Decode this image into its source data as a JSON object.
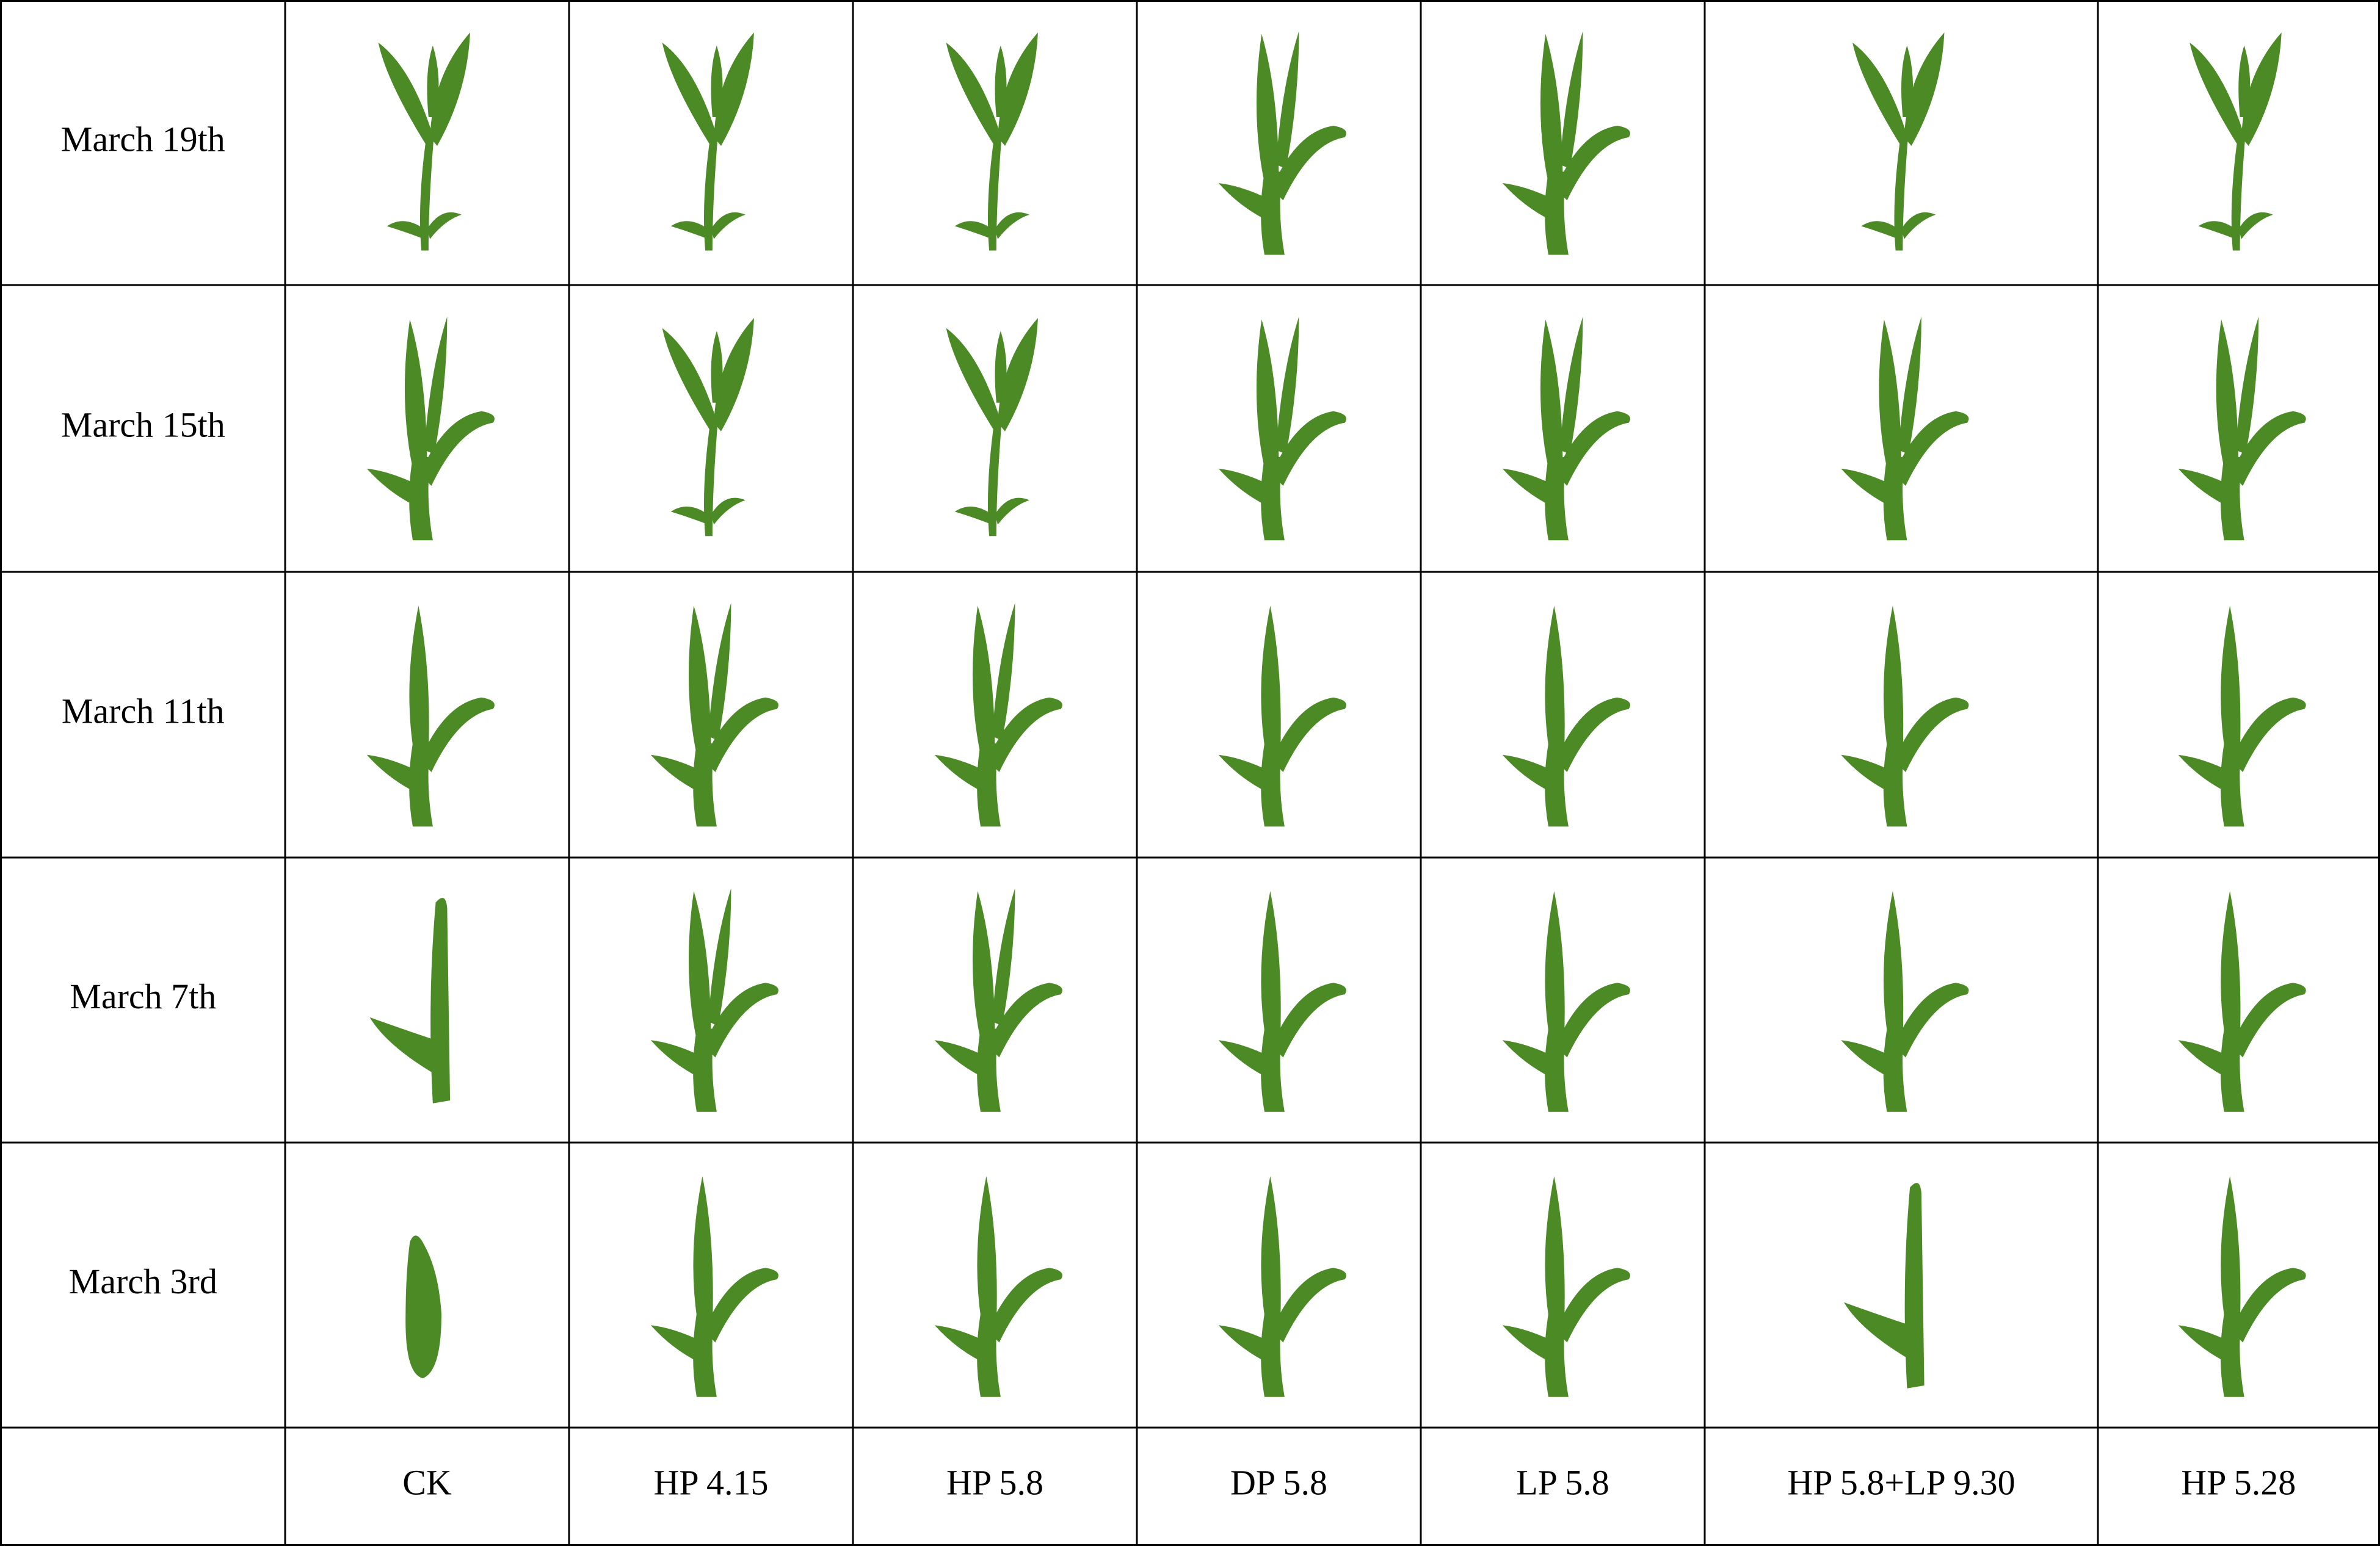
{
  "rows": [
    "March 19th",
    "March 15th",
    "March 11th",
    "March 7th",
    "March 3rd"
  ],
  "columns": [
    "CK",
    "HP 4.15",
    "HP 5.8",
    "DP 5.8",
    "LP 5.8",
    "HP 5.8+LP 9.30",
    "HP 5.28"
  ]
}
